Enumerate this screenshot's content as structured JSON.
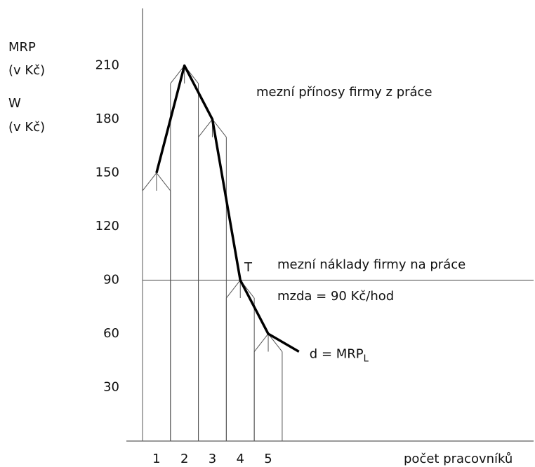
{
  "chart_data": {
    "type": "line",
    "y_axis_label": [
      "MRP",
      "(v Kč)",
      "W",
      "(v Kč)"
    ],
    "x_axis_label": "počet pracovníků",
    "xlim": [
      0.5,
      14.5
    ],
    "xticks": [
      1,
      2,
      3,
      4,
      5
    ],
    "ylim": [
      0,
      242
    ],
    "yticks": [
      30,
      60,
      90,
      120,
      150,
      180,
      210
    ],
    "grid": false,
    "series": [
      {
        "name": "d = MRP",
        "subscript": "L",
        "color": "#000000",
        "x": [
          1,
          2,
          3,
          4,
          5,
          6.1
        ],
        "values": [
          150,
          210,
          180,
          90,
          60,
          50
        ]
      }
    ],
    "bars": {
      "x": [
        1,
        2,
        3,
        4,
        5
      ],
      "values": [
        140,
        200,
        170,
        80,
        50
      ],
      "color": "#555555"
    },
    "wage": 90,
    "annotations": {
      "mrp_text": "mezní přínosy firmy z práce",
      "cost_text": "mezní náklady firmy na práce",
      "wage_text": "mzda = 90 Kč/hod",
      "point": "T"
    }
  }
}
